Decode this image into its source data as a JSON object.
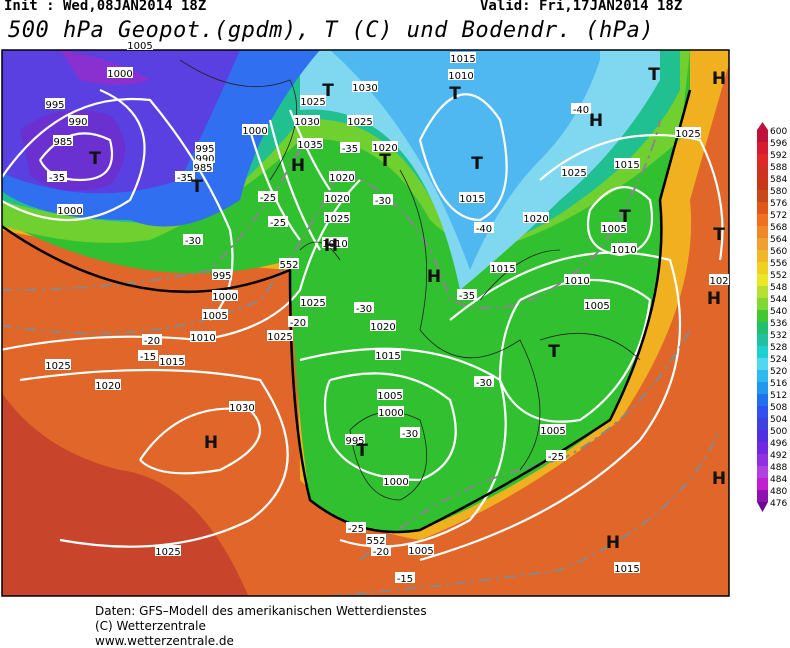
{
  "header": {
    "init": "Init : Wed,08JAN2014 18Z",
    "valid": "Valid: Fri,17JAN2014 18Z",
    "title": "500 hPa Geopot.(gpdm), T (C) und Bodendr. (hPa)"
  },
  "colorbar": {
    "levels": [
      600,
      596,
      592,
      588,
      584,
      580,
      576,
      572,
      568,
      564,
      560,
      556,
      552,
      548,
      544,
      540,
      536,
      532,
      528,
      524,
      520,
      516,
      512,
      508,
      504,
      500,
      496,
      492,
      488,
      484,
      480,
      476
    ]
  },
  "map": {
    "labels": [
      "1005",
      "1000",
      "995",
      "990",
      "985",
      "-35",
      "1000",
      "995",
      "990",
      "985",
      "-35",
      "1000",
      "1025",
      "1030",
      "1035",
      "1030",
      "1025",
      "-35",
      "1020",
      "1015",
      "1010",
      "1020",
      "1020",
      "-30",
      "1025",
      "1010",
      "-25",
      "-25",
      "-30",
      "995",
      "1000",
      "1005",
      "552",
      "1025",
      "-20",
      "1025",
      "1010",
      "-20",
      "-15",
      "1015",
      "1025",
      "1020",
      "1030",
      "1025",
      "-40",
      "1025",
      "1015",
      "1025",
      "1015",
      "-40",
      "1020",
      "1005",
      "1010",
      "1015",
      "1010",
      "1005",
      "-35",
      "-30",
      "1020",
      "1015",
      "-30",
      "1005",
      "1000",
      "995",
      "-30",
      "1000",
      "1005",
      "-25",
      "-25",
      "552",
      "-20",
      "1005",
      "-15",
      "1015",
      "102"
    ],
    "markers": [
      "T",
      "T",
      "H",
      "T",
      "T",
      "T",
      "T",
      "T",
      "H",
      "H",
      "T",
      "H",
      "H",
      "T",
      "H",
      "T",
      "H",
      "T",
      "H",
      "H"
    ]
  },
  "footer": {
    "line1": "Daten: GFS–Modell des amerikanischen Wetterdienstes",
    "line2": "(C) Wetterzentrale",
    "line3": "www.wetterzentrale.de"
  }
}
